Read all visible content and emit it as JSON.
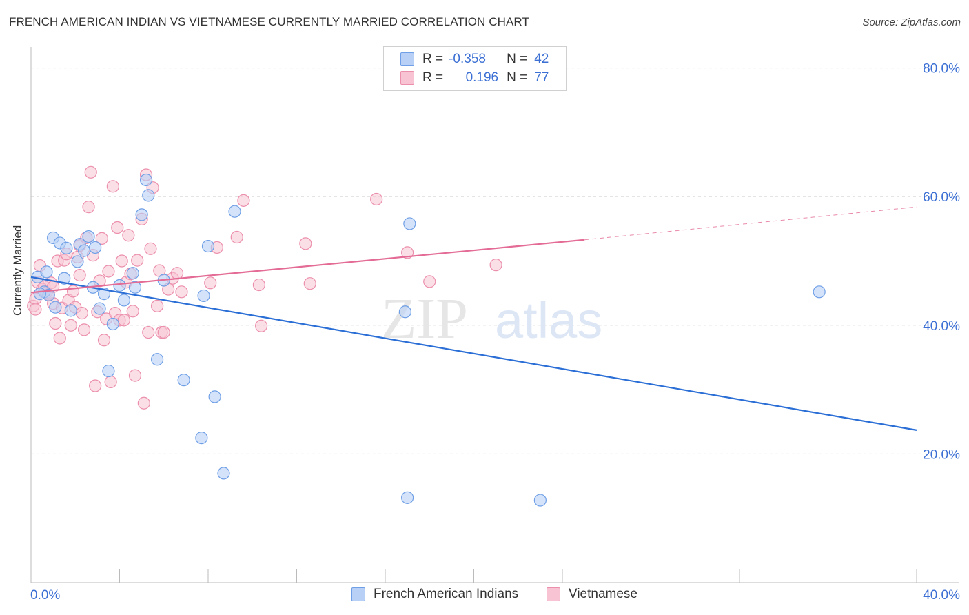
{
  "header": {
    "title": "FRENCH AMERICAN INDIAN VS VIETNAMESE CURRENTLY MARRIED CORRELATION CHART",
    "source": "Source: ZipAtlas.com"
  },
  "legend": {
    "rows": [
      {
        "r_label": "R =",
        "r_value": "-0.358",
        "n_label": "N =",
        "n_value": "42"
      },
      {
        "r_label": "R =",
        "r_value": "0.196",
        "n_label": "N =",
        "n_value": "77"
      }
    ]
  },
  "bottom_legend": {
    "series1": "French American Indians",
    "series2": "Vietnamese"
  },
  "colors": {
    "blue_fill": "#b8d0f5",
    "blue_stroke": "#6f9fe6",
    "blue_line": "#2b6fd6",
    "pink_fill": "#f8c4d4",
    "pink_stroke": "#ec8fac",
    "pink_line": "#e36b95",
    "axis_text": "#3b6fd4",
    "grid": "#dcdcdc"
  },
  "watermark": {
    "part1": "ZIP",
    "part2": "atlas"
  },
  "chart_data": {
    "type": "scatter",
    "title": "FRENCH AMERICAN INDIAN VS VIETNAMESE CURRENTLY MARRIED CORRELATION CHART",
    "xlabel": "",
    "ylabel": "Currently Married",
    "xlim": [
      0,
      40
    ],
    "ylim": [
      0,
      82
    ],
    "x_tick_labels": [
      "0.0%",
      "40.0%"
    ],
    "y_ticks": [
      20,
      40,
      60,
      80
    ],
    "y_tick_labels": [
      "20.0%",
      "40.0%",
      "60.0%",
      "80.0%"
    ],
    "grid": true,
    "legend_position": "top-center",
    "series": [
      {
        "name": "French American Indians",
        "points": [
          [
            0.3,
            47.5
          ],
          [
            0.6,
            45.2
          ],
          [
            0.7,
            48.3
          ],
          [
            0.8,
            44.7
          ],
          [
            1.0,
            53.6
          ],
          [
            1.1,
            42.8
          ],
          [
            1.3,
            52.8
          ],
          [
            1.5,
            47.3
          ],
          [
            1.6,
            52.0
          ],
          [
            1.8,
            42.3
          ],
          [
            2.1,
            49.9
          ],
          [
            2.2,
            52.6
          ],
          [
            2.4,
            51.6
          ],
          [
            2.6,
            53.8
          ],
          [
            2.8,
            45.9
          ],
          [
            2.9,
            52.1
          ],
          [
            3.1,
            42.6
          ],
          [
            3.3,
            44.9
          ],
          [
            3.5,
            32.9
          ],
          [
            3.7,
            40.2
          ],
          [
            4.0,
            46.2
          ],
          [
            4.2,
            43.9
          ],
          [
            4.6,
            48.1
          ],
          [
            4.7,
            45.9
          ],
          [
            5.0,
            57.2
          ],
          [
            5.2,
            62.6
          ],
          [
            5.3,
            60.2
          ],
          [
            5.7,
            34.7
          ],
          [
            6.0,
            47.0
          ],
          [
            6.9,
            31.5
          ],
          [
            7.7,
            22.5
          ],
          [
            7.8,
            44.6
          ],
          [
            8.0,
            52.3
          ],
          [
            8.3,
            28.9
          ],
          [
            8.7,
            17.0
          ],
          [
            9.2,
            57.7
          ],
          [
            16.9,
            42.1
          ],
          [
            17.0,
            13.2
          ],
          [
            17.1,
            55.8
          ],
          [
            23.0,
            12.8
          ],
          [
            35.6,
            45.2
          ],
          [
            0.4,
            44.9
          ]
        ]
      },
      {
        "name": "Vietnamese",
        "points": [
          [
            0.1,
            43.0
          ],
          [
            0.2,
            44.1
          ],
          [
            0.3,
            46.7
          ],
          [
            0.4,
            49.3
          ],
          [
            0.5,
            45.6
          ],
          [
            0.6,
            46.0
          ],
          [
            0.7,
            45.1
          ],
          [
            0.9,
            46.6
          ],
          [
            1.0,
            43.4
          ],
          [
            1.1,
            40.3
          ],
          [
            1.2,
            50.0
          ],
          [
            1.3,
            38.0
          ],
          [
            1.4,
            42.7
          ],
          [
            1.5,
            50.1
          ],
          [
            1.6,
            51.1
          ],
          [
            1.7,
            43.9
          ],
          [
            1.8,
            40.0
          ],
          [
            1.9,
            45.3
          ],
          [
            2.0,
            42.8
          ],
          [
            2.1,
            50.6
          ],
          [
            2.2,
            52.4
          ],
          [
            2.3,
            41.9
          ],
          [
            2.4,
            39.3
          ],
          [
            2.5,
            53.6
          ],
          [
            2.6,
            58.4
          ],
          [
            2.7,
            63.8
          ],
          [
            2.8,
            50.9
          ],
          [
            2.9,
            30.6
          ],
          [
            3.0,
            42.1
          ],
          [
            3.1,
            46.9
          ],
          [
            3.2,
            53.5
          ],
          [
            3.3,
            37.7
          ],
          [
            3.4,
            41.0
          ],
          [
            3.5,
            48.4
          ],
          [
            3.6,
            31.2
          ],
          [
            3.7,
            61.6
          ],
          [
            3.8,
            41.9
          ],
          [
            3.9,
            55.2
          ],
          [
            4.0,
            40.8
          ],
          [
            4.1,
            50.0
          ],
          [
            4.2,
            40.8
          ],
          [
            4.3,
            46.7
          ],
          [
            4.4,
            54.0
          ],
          [
            4.5,
            48.0
          ],
          [
            4.6,
            42.2
          ],
          [
            4.7,
            32.2
          ],
          [
            4.8,
            50.1
          ],
          [
            5.0,
            56.5
          ],
          [
            5.1,
            27.9
          ],
          [
            5.2,
            63.4
          ],
          [
            5.3,
            38.9
          ],
          [
            5.4,
            51.9
          ],
          [
            5.5,
            61.4
          ],
          [
            5.7,
            43.0
          ],
          [
            5.8,
            48.5
          ],
          [
            5.9,
            38.9
          ],
          [
            6.0,
            38.9
          ],
          [
            6.2,
            45.6
          ],
          [
            6.4,
            47.3
          ],
          [
            6.6,
            48.1
          ],
          [
            6.8,
            45.2
          ],
          [
            8.1,
            46.6
          ],
          [
            8.4,
            52.1
          ],
          [
            9.3,
            53.7
          ],
          [
            9.6,
            59.4
          ],
          [
            10.3,
            46.3
          ],
          [
            10.4,
            39.9
          ],
          [
            12.4,
            52.7
          ],
          [
            12.6,
            46.5
          ],
          [
            17.0,
            51.3
          ],
          [
            18.0,
            46.8
          ],
          [
            21.0,
            49.4
          ],
          [
            15.6,
            59.6
          ],
          [
            0.8,
            44.8
          ],
          [
            2.2,
            47.8
          ],
          [
            1.0,
            46.0
          ],
          [
            0.2,
            42.5
          ]
        ]
      }
    ],
    "trend_lines": [
      {
        "series": "French American Indians",
        "x": [
          0,
          40
        ],
        "y": [
          47.5,
          23.7
        ],
        "style": "solid"
      },
      {
        "series": "Vietnamese",
        "x": [
          0,
          25
        ],
        "y": [
          45.1,
          53.3
        ],
        "style": "solid"
      },
      {
        "series": "Vietnamese",
        "x": [
          25,
          40
        ],
        "y": [
          53.3,
          58.4
        ],
        "style": "dashed"
      }
    ]
  }
}
